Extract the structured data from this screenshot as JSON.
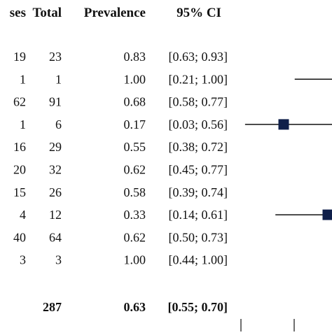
{
  "chart_data": {
    "type": "forest",
    "columns": [
      {
        "key": "events",
        "header": "ses"
      },
      {
        "key": "total",
        "header": "Total"
      },
      {
        "key": "prevalence",
        "header": "Prevalence"
      },
      {
        "key": "ci",
        "header": "95% CI"
      }
    ],
    "rows": [
      {
        "events": "19",
        "total": "23",
        "prevalence": "0.83",
        "ci": "[0.63; 0.93]",
        "est": 0.83,
        "lo": 0.63,
        "hi": 0.93
      },
      {
        "events": "1",
        "total": "1",
        "prevalence": "1.00",
        "ci": "[0.21; 1.00]",
        "est": 1.0,
        "lo": 0.21,
        "hi": 1.0
      },
      {
        "events": "62",
        "total": "91",
        "prevalence": "0.68",
        "ci": "[0.58; 0.77]",
        "est": 0.68,
        "lo": 0.58,
        "hi": 0.77
      },
      {
        "events": "1",
        "total": "6",
        "prevalence": "0.17",
        "ci": "[0.03; 0.56]",
        "est": 0.17,
        "lo": 0.03,
        "hi": 0.56
      },
      {
        "events": "16",
        "total": "29",
        "prevalence": "0.55",
        "ci": "[0.38; 0.72]",
        "est": 0.55,
        "lo": 0.38,
        "hi": 0.72
      },
      {
        "events": "20",
        "total": "32",
        "prevalence": "0.62",
        "ci": "[0.45; 0.77]",
        "est": 0.62,
        "lo": 0.45,
        "hi": 0.77
      },
      {
        "events": "15",
        "total": "26",
        "prevalence": "0.58",
        "ci": "[0.39; 0.74]",
        "est": 0.58,
        "lo": 0.39,
        "hi": 0.74
      },
      {
        "events": "4",
        "total": "12",
        "prevalence": "0.33",
        "ci": "[0.14; 0.61]",
        "est": 0.33,
        "lo": 0.14,
        "hi": 0.61
      },
      {
        "events": "40",
        "total": "64",
        "prevalence": "0.62",
        "ci": "[0.50; 0.73]",
        "est": 0.62,
        "lo": 0.5,
        "hi": 0.73
      },
      {
        "events": "3",
        "total": "3",
        "prevalence": "1.00",
        "ci": "[0.44; 1.00]",
        "est": 1.0,
        "lo": 0.44,
        "hi": 1.0
      }
    ],
    "summary": {
      "total": "287",
      "prevalence": "0.63",
      "ci": "[0.55; 0.70]"
    },
    "marker_color": "#0f1f4a",
    "line_color": "#111111"
  }
}
